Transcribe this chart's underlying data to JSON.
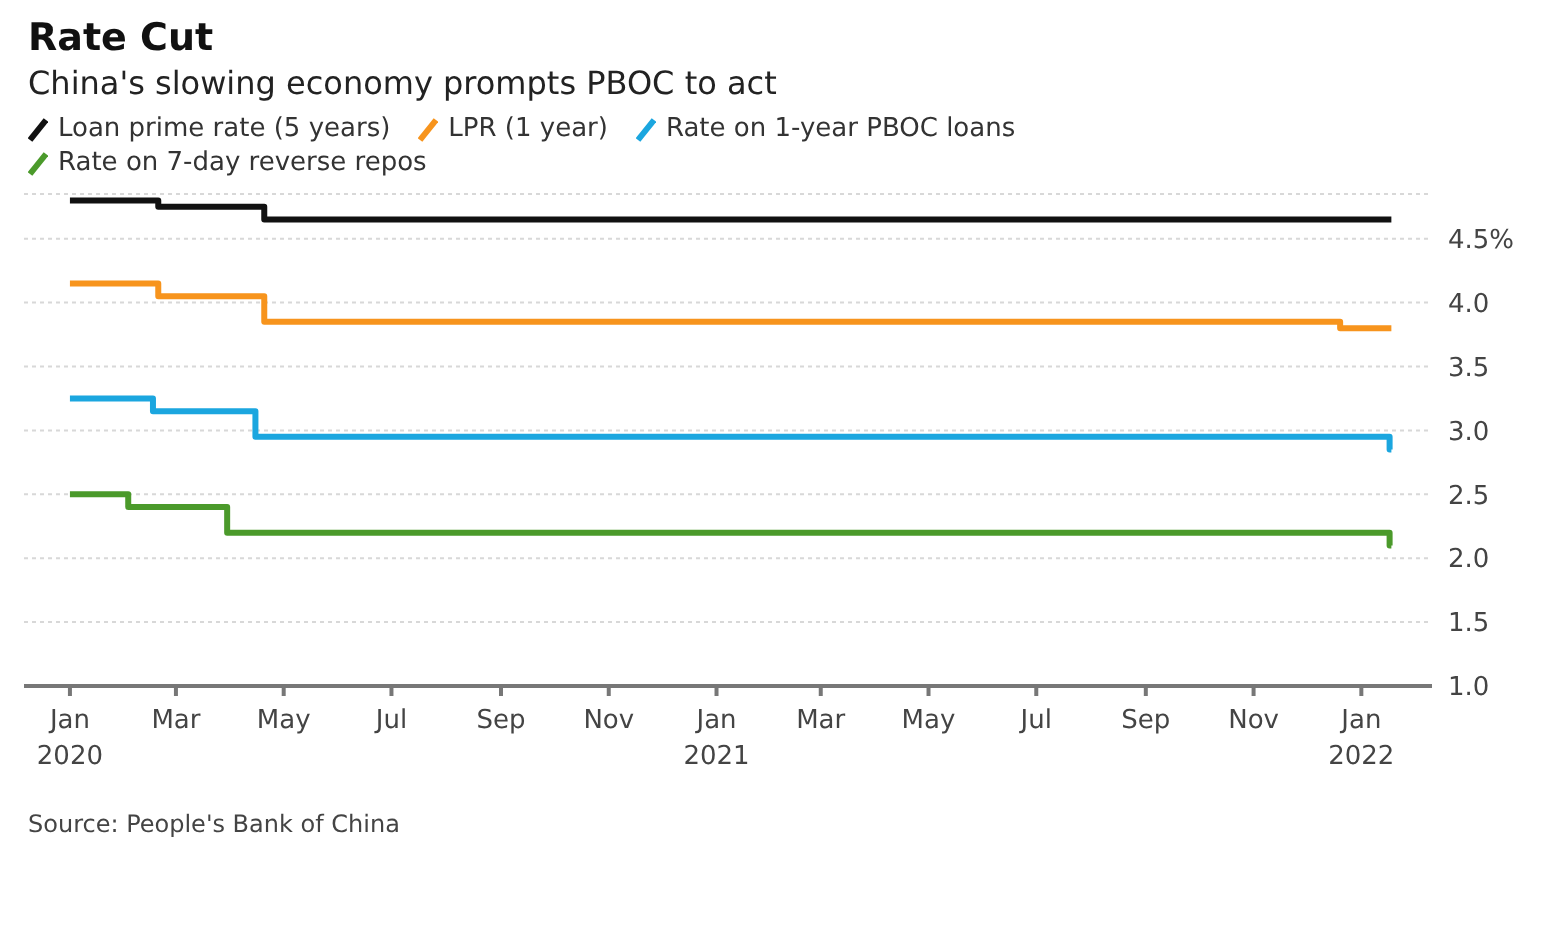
{
  "chart_data": {
    "type": "step",
    "title": "Rate Cut",
    "subtitle": "China's slowing economy prompts PBOC to act",
    "series": [
      {
        "name": "Loan prime rate (5 years)",
        "color": "#111111",
        "x": [
          "2020-01-01",
          "2020-02-20",
          "2020-04-20",
          "2022-01-18"
        ],
        "values": [
          4.8,
          4.75,
          4.65,
          4.65
        ]
      },
      {
        "name": "LPR (1 year)",
        "color": "#f7941d",
        "x": [
          "2020-01-01",
          "2020-02-20",
          "2020-04-20",
          "2021-12-20",
          "2022-01-18"
        ],
        "values": [
          4.15,
          4.05,
          3.85,
          3.8,
          3.8
        ]
      },
      {
        "name": "Rate on 1-year PBOC loans",
        "color": "#1ba6df",
        "x": [
          "2020-01-01",
          "2020-02-17",
          "2020-04-15",
          "2022-01-17",
          "2022-01-18"
        ],
        "values": [
          3.25,
          3.15,
          2.95,
          2.85,
          2.85
        ]
      },
      {
        "name": "Rate on 7-day reverse repos",
        "color": "#4b9a2b",
        "x": [
          "2020-01-01",
          "2020-02-03",
          "2020-03-30",
          "2022-01-17",
          "2022-01-18"
        ],
        "values": [
          2.5,
          2.4,
          2.2,
          2.1,
          2.1
        ]
      }
    ],
    "xlim": [
      "2019-12-06",
      "2022-02-10"
    ],
    "xticks": [
      {
        "value": "2020-01-01",
        "label": "Jan 2020"
      },
      {
        "value": "2020-03-01",
        "label": "Mar"
      },
      {
        "value": "2020-05-01",
        "label": "May"
      },
      {
        "value": "2020-07-01",
        "label": "Jul"
      },
      {
        "value": "2020-09-01",
        "label": "Sep"
      },
      {
        "value": "2020-11-01",
        "label": "Nov"
      },
      {
        "value": "2021-01-01",
        "label": "Jan 2021"
      },
      {
        "value": "2021-03-01",
        "label": "Mar"
      },
      {
        "value": "2021-05-01",
        "label": "May"
      },
      {
        "value": "2021-07-01",
        "label": "Jul"
      },
      {
        "value": "2021-09-01",
        "label": "Sep"
      },
      {
        "value": "2021-11-01",
        "label": "Nov"
      },
      {
        "value": "2022-01-01",
        "label": "Jan 2022"
      }
    ],
    "ylim": [
      1,
      4.85
    ],
    "yticks": [
      {
        "value": 1,
        "label": "1.0"
      },
      {
        "value": 1.5,
        "label": "1.5"
      },
      {
        "value": 2,
        "label": "2.0"
      },
      {
        "value": 2.5,
        "label": "2.5"
      },
      {
        "value": 3,
        "label": "3.0"
      },
      {
        "value": 3.5,
        "label": "3.5"
      },
      {
        "value": 4,
        "label": "4.0"
      },
      {
        "value": 4.5,
        "label": "4.5%"
      }
    ],
    "grid": "y",
    "legend": "top left",
    "marker": "none",
    "line_style": "solid",
    "annotations": [
      "Source: People's Bank of China"
    ]
  }
}
